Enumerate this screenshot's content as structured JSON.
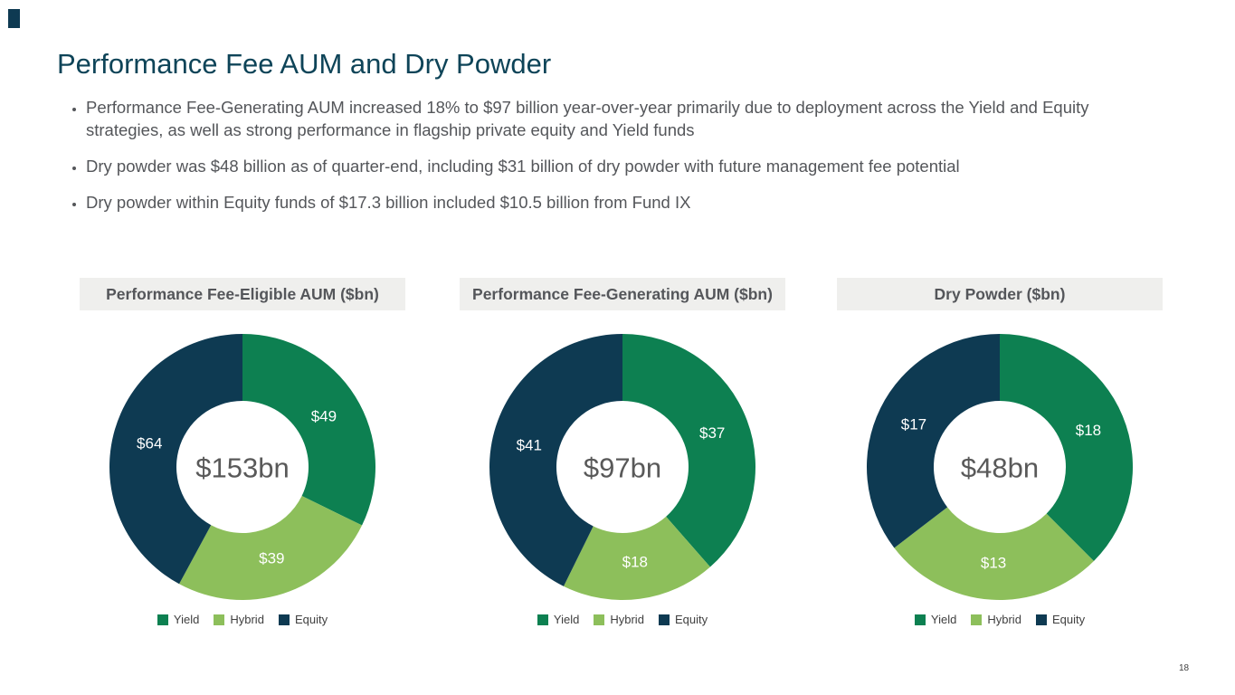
{
  "slide": {
    "title": "Performance Fee AUM and Dry Powder",
    "page_number": "18",
    "bullets": [
      "Performance Fee-Generating AUM increased 18% to $97 billion year-over-year primarily due to deployment across the Yield and Equity strategies, as well as strong performance in flagship private equity and Yield funds",
      "Dry powder was $48 billion as of quarter-end, including $31 billion of dry powder with future management fee potential",
      "Dry powder within Equity funds of $17.3 billion included $10.5 billion from Fund IX"
    ]
  },
  "colors": {
    "yield": "#0D8051",
    "hybrid": "#8DBF5B",
    "equity": "#0E3A52",
    "title_text": "#0E4458",
    "body_text": "#54565A",
    "header_bg": "#EFEFED",
    "header_text": "#54565A",
    "center_label_text": "#595959",
    "slice_label_text": "#FFFFFF"
  },
  "chart_data": [
    {
      "type": "pie",
      "subtype": "donut",
      "title": "Performance Fee-Eligible AUM ($bn)",
      "center_label": "$153bn",
      "start_angle_deg": 0,
      "direction": "clockwise",
      "slices": [
        {
          "name": "Yield",
          "value": 49,
          "label": "$49",
          "color_key": "yield"
        },
        {
          "name": "Hybrid",
          "value": 39,
          "label": "$39",
          "color_key": "hybrid"
        },
        {
          "name": "Equity",
          "value": 64,
          "label": "$64",
          "color_key": "equity"
        }
      ],
      "legend": [
        "Yield",
        "Hybrid",
        "Equity"
      ],
      "legend_position": "bottom"
    },
    {
      "type": "pie",
      "subtype": "donut",
      "title": "Performance Fee-Generating AUM ($bn)",
      "center_label": "$97bn",
      "start_angle_deg": 0,
      "direction": "clockwise",
      "slices": [
        {
          "name": "Yield",
          "value": 37,
          "label": "$37",
          "color_key": "yield"
        },
        {
          "name": "Hybrid",
          "value": 18,
          "label": "$18",
          "color_key": "hybrid"
        },
        {
          "name": "Equity",
          "value": 41,
          "label": "$41",
          "color_key": "equity"
        }
      ],
      "legend": [
        "Yield",
        "Hybrid",
        "Equity"
      ],
      "legend_position": "bottom"
    },
    {
      "type": "pie",
      "subtype": "donut",
      "title": "Dry Powder ($bn)",
      "center_label": "$48bn",
      "start_angle_deg": 0,
      "direction": "clockwise",
      "slices": [
        {
          "name": "Yield",
          "value": 18,
          "label": "$18",
          "color_key": "yield"
        },
        {
          "name": "Hybrid",
          "value": 13,
          "label": "$13",
          "color_key": "hybrid"
        },
        {
          "name": "Equity",
          "value": 17,
          "label": "$17",
          "color_key": "equity"
        }
      ],
      "legend": [
        "Yield",
        "Hybrid",
        "Equity"
      ],
      "legend_position": "bottom"
    }
  ]
}
